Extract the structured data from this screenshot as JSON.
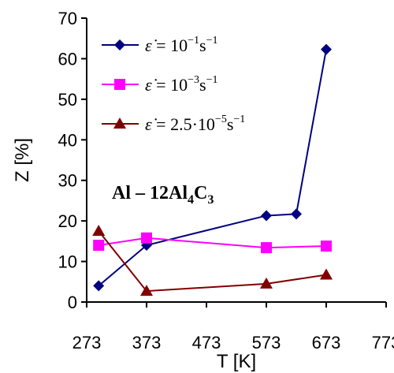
{
  "chart_data": {
    "type": "line",
    "xlabel": "T [K]",
    "ylabel": "Z [%]",
    "xlim": [
      273,
      773
    ],
    "ylim": [
      0,
      70
    ],
    "xticks": [
      273,
      373,
      473,
      573,
      673,
      773
    ],
    "yticks": [
      0,
      10,
      20,
      30,
      40,
      50,
      60,
      70
    ],
    "grid": false,
    "legend_position": "top-left",
    "annotation": {
      "base": "Al – 12Al",
      "sub1": "4",
      "mid": "C",
      "sub2": "3"
    },
    "series": [
      {
        "name": "ε̇ = 10⁻¹s⁻¹",
        "legend": {
          "symbol": "ε̇",
          "eq": " = ",
          "coef": "",
          "base": "10",
          "exp": "−1",
          "unit": "s",
          "uexp": "−1"
        },
        "color": "#000080",
        "marker": "diamond",
        "x": [
          293,
          373,
          573,
          623,
          673
        ],
        "values": [
          4,
          14,
          21.3,
          21.7,
          62.3
        ]
      },
      {
        "name": "ε̇ = 10⁻³s⁻¹",
        "legend": {
          "symbol": "ε̇",
          "eq": " = ",
          "coef": "",
          "base": "10",
          "exp": "−3",
          "unit": "s",
          "uexp": "−1"
        },
        "color": "#FF00FF",
        "marker": "square",
        "x": [
          293,
          373,
          573,
          673
        ],
        "values": [
          14,
          15.8,
          13.4,
          13.8
        ]
      },
      {
        "name": "ε̇ = 2.5·10⁻⁵s⁻¹",
        "legend": {
          "symbol": "ε̇",
          "eq": " = ",
          "coef": "2.5·",
          "base": "10",
          "exp": "−5",
          "unit": "s",
          "uexp": "−1"
        },
        "color": "#800000",
        "marker": "triangle",
        "x": [
          293,
          373,
          573,
          673
        ],
        "values": [
          17.5,
          2.7,
          4.5,
          6.7
        ]
      }
    ]
  }
}
